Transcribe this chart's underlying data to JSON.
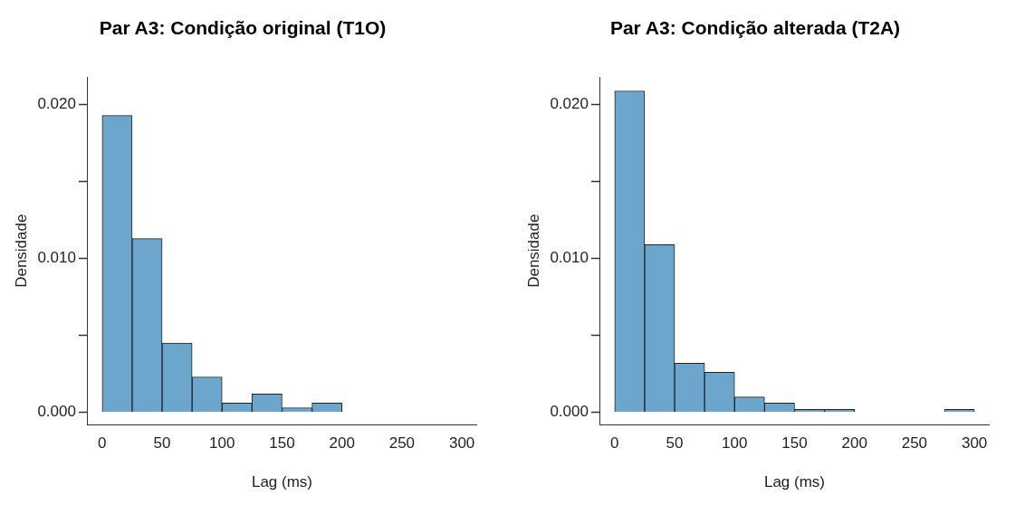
{
  "chart_data": [
    {
      "type": "histogram",
      "title": "Par A3: Condição original (T1O)",
      "xlabel": "Lag (ms)",
      "ylabel": "Densidade",
      "color": "#6ca6cd",
      "bins": [
        0,
        25,
        50,
        75,
        100,
        125,
        150,
        175,
        200
      ],
      "values": [
        0.0193,
        0.0113,
        0.0045,
        0.0023,
        0.0006,
        0.0012,
        0.0003,
        0.0006
      ],
      "xlim": [
        -12,
        312
      ],
      "xticks": [
        0,
        50,
        100,
        150,
        200,
        250,
        300
      ],
      "ylim": [
        -0.0008,
        0.0218
      ],
      "yticks": [
        {
          "value": 0,
          "label": "0.000"
        },
        {
          "value": 0.005,
          "label": null
        },
        {
          "value": 0.01,
          "label": "0.010"
        },
        {
          "value": 0.015,
          "label": null
        },
        {
          "value": 0.02,
          "label": "0.020"
        }
      ],
      "grid": false,
      "legend": false
    },
    {
      "type": "histogram",
      "title": "Par A3: Condição alterada (T2A)",
      "xlabel": "Lag (ms)",
      "ylabel": "Densidade",
      "color": "#6ca6cd",
      "bins": [
        0,
        25,
        50,
        75,
        100,
        125,
        150,
        175,
        200,
        225,
        250,
        275,
        300
      ],
      "values": [
        0.0209,
        0.0109,
        0.0032,
        0.0026,
        0.001,
        0.0006,
        0.0002,
        0.0002,
        0,
        0,
        0,
        0.0002
      ],
      "xlim": [
        -12,
        312
      ],
      "xticks": [
        0,
        50,
        100,
        150,
        200,
        250,
        300
      ],
      "ylim": [
        -0.0008,
        0.0218
      ],
      "yticks": [
        {
          "value": 0,
          "label": "0.000"
        },
        {
          "value": 0.005,
          "label": null
        },
        {
          "value": 0.01,
          "label": "0.010"
        },
        {
          "value": 0.015,
          "label": null
        },
        {
          "value": 0.02,
          "label": "0.020"
        }
      ],
      "grid": false,
      "legend": false
    }
  ]
}
